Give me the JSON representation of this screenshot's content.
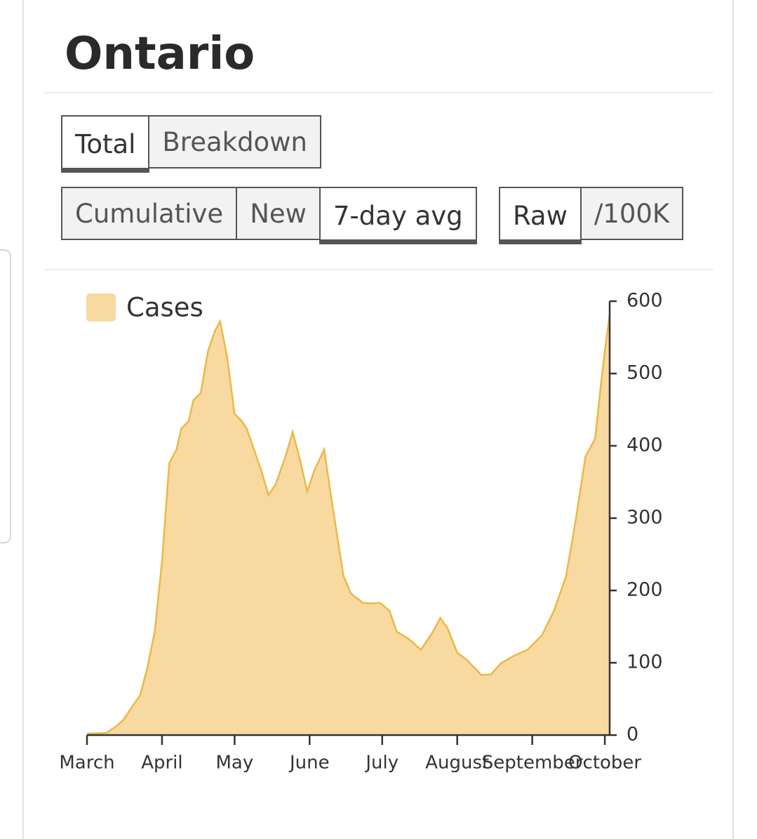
{
  "header": {
    "title": "Ontario"
  },
  "controls": {
    "view": {
      "options": [
        "Total",
        "Breakdown"
      ],
      "selected": 0
    },
    "measure": {
      "options": [
        "Cumulative",
        "New",
        "7-day avg"
      ],
      "selected": 2
    },
    "scale": {
      "options": [
        "Raw",
        "/100K"
      ],
      "selected": 0
    }
  },
  "chart_data": {
    "type": "area",
    "x": [
      0,
      8,
      12,
      15,
      19,
      22,
      25,
      28,
      31,
      34,
      37,
      39,
      42,
      44,
      47,
      50,
      53,
      55,
      58,
      61,
      64,
      66,
      69,
      72,
      75,
      78,
      82,
      85,
      88,
      91,
      94,
      98,
      101,
      106,
      109,
      114,
      118,
      121,
      125,
      128,
      133,
      138,
      143,
      146,
      149,
      153,
      157,
      163,
      167,
      171,
      176,
      182,
      188,
      193,
      198,
      202,
      206,
      210,
      212,
      214,
      216
    ],
    "series": [
      {
        "name": "Cases",
        "color": "#f8d9a0",
        "line_color": "#ebb847",
        "values": [
          2,
          3,
          12,
          21,
          41,
          55,
          94,
          143,
          240,
          376,
          395,
          424,
          434,
          463,
          473,
          531,
          560,
          572,
          521,
          444,
          434,
          424,
          395,
          366,
          332,
          347,
          385,
          419,
          381,
          337,
          366,
          395,
          327,
          220,
          196,
          183,
          182,
          183,
          172,
          143,
          133,
          118,
          143,
          162,
          148,
          114,
          104,
          83,
          84,
          99,
          109,
          118,
          138,
          172,
          220,
          298,
          385,
          410,
          473,
          531,
          582
        ]
      }
    ],
    "xlim": [
      0,
      216
    ],
    "xticks": [
      {
        "value": 0,
        "label": "March"
      },
      {
        "value": 31,
        "label": "April"
      },
      {
        "value": 61,
        "label": "May"
      },
      {
        "value": 92,
        "label": "June"
      },
      {
        "value": 122,
        "label": "July"
      },
      {
        "value": 153,
        "label": "August"
      },
      {
        "value": 184,
        "label": "September"
      },
      {
        "value": 214,
        "label": "October"
      }
    ],
    "ylim": [
      0,
      600
    ],
    "yticks": [
      0,
      100,
      200,
      300,
      400,
      500,
      600
    ],
    "y_axis_side": "right",
    "legend": "top-left"
  }
}
